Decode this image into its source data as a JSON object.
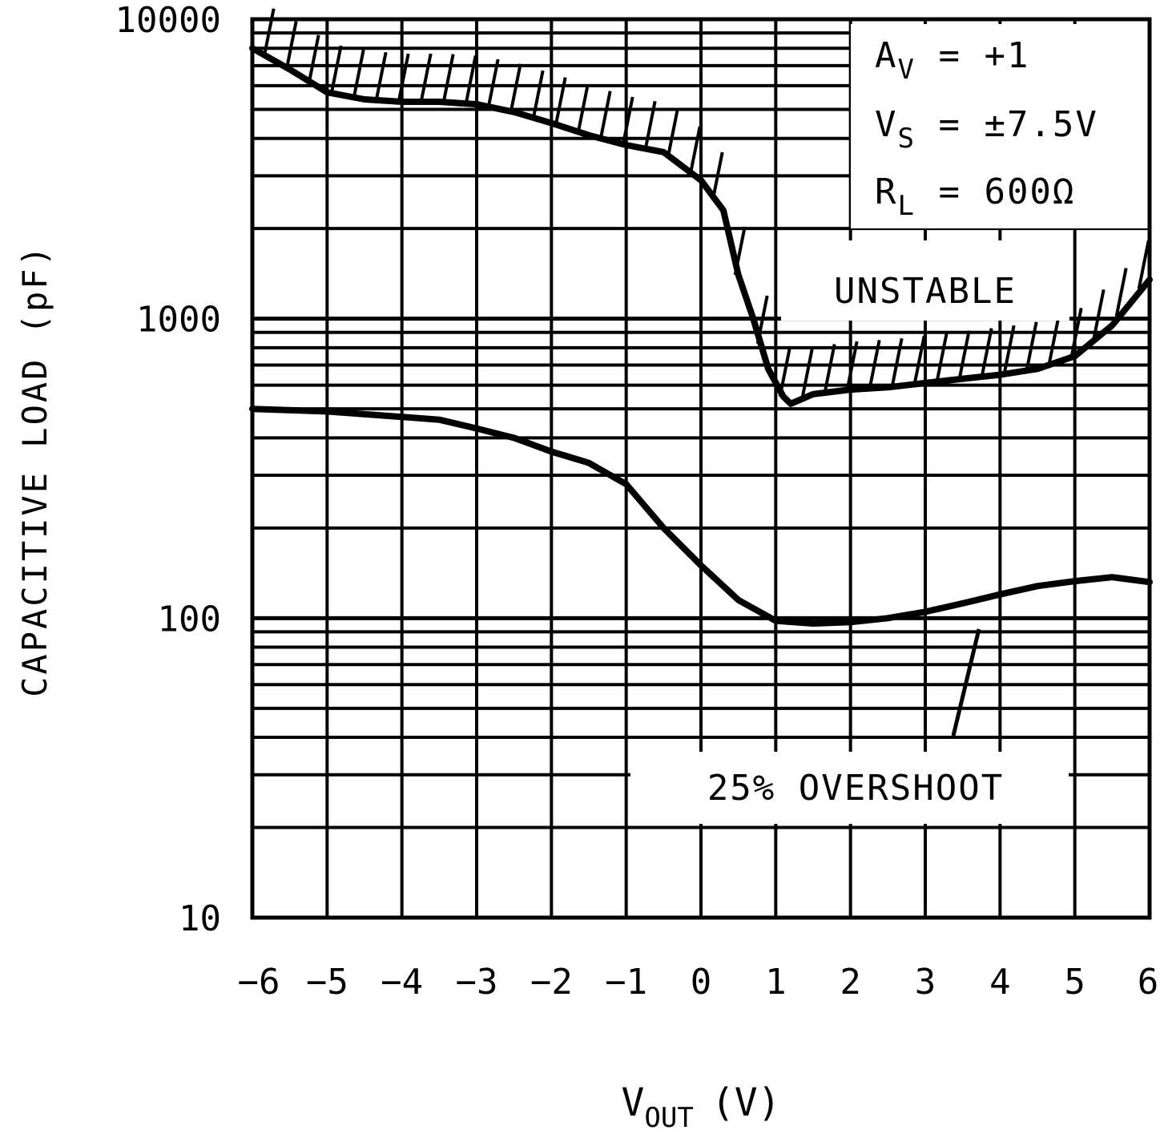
{
  "chart_data": {
    "type": "line",
    "title": "",
    "xlabel": {
      "main": "V",
      "sub": "OUT",
      "unit": "(V)"
    },
    "ylabel": "CAPACITIVE LOAD (pF)",
    "xlim": [
      -6,
      6
    ],
    "ylim": [
      10,
      10000
    ],
    "yscale": "log",
    "grid": true,
    "x_tick_labels": [
      "−6",
      "−5",
      "−4",
      "−3",
      "−2",
      "−1",
      "0",
      "1",
      "2",
      "3",
      "4",
      "5",
      "6"
    ],
    "y_tick_labels": [
      "10",
      "100",
      "1000",
      "10000"
    ],
    "conditions": [
      {
        "sym": "A",
        "sub": "V",
        "rest": " = +1"
      },
      {
        "sym": "V",
        "sub": "S",
        "rest": " = ±7.5V"
      },
      {
        "sym": "R",
        "sub": "L",
        "rest": " = 600Ω"
      }
    ],
    "series": [
      {
        "name": "UNSTABLE",
        "x": [
          -6,
          -5.5,
          -5,
          -4.5,
          -4,
          -3.5,
          -3,
          -2.5,
          -2,
          -1.5,
          -1,
          -0.5,
          0,
          0.3,
          0.5,
          0.7,
          0.9,
          1.1,
          1.2,
          1.5,
          2,
          2.5,
          3,
          3.5,
          4,
          4.5,
          5,
          5.5,
          6
        ],
        "values": [
          8000,
          6800,
          5700,
          5400,
          5300,
          5300,
          5200,
          4900,
          4500,
          4100,
          3800,
          3600,
          2900,
          2300,
          1400,
          1000,
          680,
          550,
          520,
          560,
          580,
          590,
          610,
          630,
          650,
          680,
          750,
          950,
          1350
        ]
      },
      {
        "name": "25% OVERSHOOT",
        "x": [
          -6,
          -5,
          -4,
          -3.5,
          -3,
          -2.5,
          -2,
          -1.5,
          -1,
          -0.5,
          0,
          0.5,
          1,
          1.5,
          2,
          2.5,
          3,
          3.5,
          4,
          4.5,
          5,
          5.5,
          6
        ],
        "values": [
          500,
          490,
          470,
          460,
          430,
          400,
          360,
          330,
          280,
          200,
          150,
          115,
          98,
          96,
          97,
          100,
          105,
          112,
          120,
          128,
          133,
          137,
          132
        ]
      }
    ],
    "annotations": [
      "UNSTABLE",
      "25% OVERSHOOT"
    ]
  }
}
